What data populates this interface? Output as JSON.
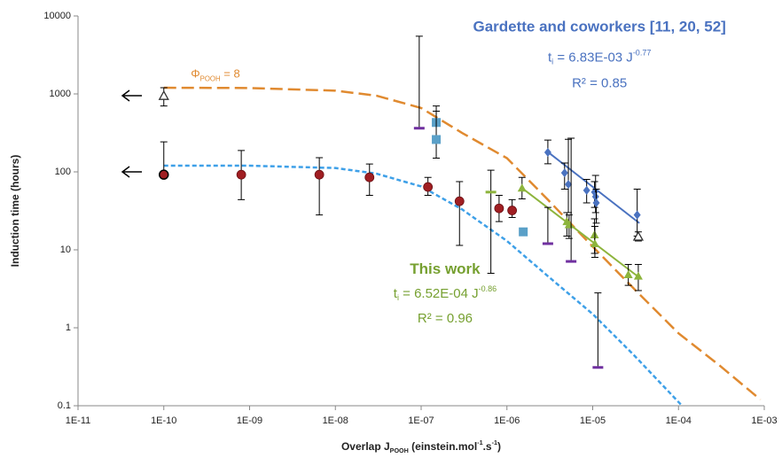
{
  "chart_data": {
    "type": "scatter",
    "log_x": true,
    "log_y": true,
    "xlim": [
      1e-11,
      0.001
    ],
    "ylim": [
      0.1,
      10000
    ],
    "xticks": [
      {
        "value": 1e-11,
        "label": "1E-11"
      },
      {
        "value": 1e-10,
        "label": "1E-10"
      },
      {
        "value": 1e-09,
        "label": "1E-09"
      },
      {
        "value": 1e-08,
        "label": "1E-08"
      },
      {
        "value": 1e-07,
        "label": "1E-07"
      },
      {
        "value": 1e-06,
        "label": "1E-06"
      },
      {
        "value": 1e-05,
        "label": "1E-05"
      },
      {
        "value": 0.0001,
        "label": "1E-04"
      },
      {
        "value": 0.001,
        "label": "1E-03"
      }
    ],
    "yticks": [
      0.1,
      1,
      10,
      100,
      1000,
      10000
    ],
    "y_label": "Induction time (hours)",
    "x_label": [
      {
        "text": "Overlap J"
      },
      {
        "text": "POOH",
        "shift": "sub"
      },
      {
        "text": " (einstein.mol"
      },
      {
        "text": "-1",
        "shift": "sup"
      },
      {
        "text": ".s"
      },
      {
        "text": "-1",
        "shift": "sup"
      },
      {
        "text": ")"
      }
    ],
    "annotations": [
      {
        "color": "#4a72c0",
        "bold": true,
        "size": 17,
        "at": [
          1.2e-05,
          7000
        ],
        "parts": [
          {
            "text": "Gardette and coworkers [11, 20, 52]"
          }
        ]
      },
      {
        "color": "#4a72c0",
        "size": 15,
        "at": [
          1.2e-05,
          2900
        ],
        "parts": [
          {
            "text": "t"
          },
          {
            "text": "i",
            "shift": "sub"
          },
          {
            "text": " = 6.83E-03 J"
          },
          {
            "text": "-0.77",
            "shift": "sup"
          }
        ]
      },
      {
        "color": "#4a72c0",
        "size": 15,
        "at": [
          1.2e-05,
          1350
        ],
        "parts": [
          {
            "text": "R² = 0.85"
          }
        ]
      },
      {
        "color": "#76a030",
        "bold": true,
        "size": 17,
        "at": [
          1.9e-07,
          5.5
        ],
        "parts": [
          {
            "text": "This work"
          }
        ]
      },
      {
        "color": "#76a030",
        "size": 15,
        "at": [
          1.9e-07,
          2.7
        ],
        "parts": [
          {
            "text": "t"
          },
          {
            "text": "i",
            "shift": "sub"
          },
          {
            "text": " = 6.52E-04 J"
          },
          {
            "text": "-0.86",
            "shift": "sup"
          }
        ]
      },
      {
        "color": "#76a030",
        "size": 15,
        "at": [
          1.9e-07,
          1.3
        ],
        "parts": [
          {
            "text": "R² = 0.96"
          }
        ]
      },
      {
        "color": "#e08a30",
        "size": 13,
        "at": [
          4e-10,
          1750
        ],
        "parts": [
          {
            "text": "Φ"
          },
          {
            "text": "POOH",
            "shift": "sub"
          },
          {
            "text": " = 8"
          }
        ]
      }
    ],
    "series": [
      {
        "style": "dashed",
        "color": "#e08a30",
        "x": [
          1e-10,
          1e-09,
          1e-08,
          3e-08,
          1e-07,
          3e-07,
          1e-06,
          3e-06,
          1e-05,
          3e-05,
          0.0001,
          0.0003,
          0.0009
        ],
        "values": [
          1200,
          1190,
          1100,
          950,
          660,
          316,
          150,
          44,
          11,
          3.2,
          0.85,
          0.33,
          0.12
        ]
      },
      {
        "style": "dotted",
        "color": "#3ea0e8",
        "x": [
          1e-10,
          1e-09,
          1e-08,
          3e-08,
          1e-07,
          3e-07,
          1e-06,
          3e-06,
          1e-05,
          3e-05,
          0.00011
        ],
        "values": [
          120,
          120,
          112,
          95,
          65,
          33,
          13,
          4.6,
          1.5,
          0.45,
          0.1
        ]
      },
      {
        "style": "solid",
        "color": "#4a72c0",
        "x": [
          3e-06,
          3.5e-05
        ],
        "values": [
          180,
          22
        ]
      },
      {
        "style": "solid",
        "color": "#8db43c",
        "x": [
          1.5e-06,
          3.5e-05
        ],
        "values": [
          62,
          4.4
        ]
      },
      {
        "marker": "circle",
        "color": "#a01e22",
        "x": [
          1e-10,
          8e-10,
          6.5e-09,
          2.5e-08,
          1.2e-07,
          2.8e-07,
          8.1e-07,
          1.15e-06
        ],
        "values": [
          92,
          92,
          92,
          85,
          64,
          42,
          34,
          32
        ],
        "err_high": [
          243,
          188,
          152,
          126,
          85,
          75,
          50,
          44
        ],
        "err_low": [
          92,
          44,
          28,
          50,
          50,
          11.4,
          23,
          26
        ]
      },
      {
        "marker": "diamond",
        "color": "#4a72c0",
        "x": [
          3e-06,
          4.7e-06,
          5.2e-06,
          8.5e-06,
          1.05e-05,
          1.08e-05,
          1.1e-05,
          3.3e-05
        ],
        "values": [
          178,
          97,
          69,
          58,
          55,
          48,
          40,
          28
        ],
        "err_high": [
          256,
          130,
          262,
          80,
          75,
          90,
          60,
          60
        ],
        "err_low": [
          127,
          60,
          30,
          40,
          35,
          30,
          22,
          15
        ]
      },
      {
        "marker": "triangle",
        "color": "#8db43c",
        "x": [
          1.5e-06,
          5e-06,
          5.3e-06,
          1.05e-05,
          1.06e-05,
          2.6e-05,
          3.4e-05
        ],
        "values": [
          62,
          23,
          21,
          15.6,
          12,
          4.8,
          4.6
        ],
        "err_high": [
          85,
          30,
          28,
          25,
          20,
          6.5,
          6.5
        ],
        "err_low": [
          45,
          15,
          14,
          9,
          8,
          3.5,
          3
        ]
      },
      {
        "marker": "triangle-open",
        "color": "#8db43c",
        "x": [
          1e-10,
          3.4e-05
        ],
        "values": [
          944,
          14.8
        ],
        "err_high": [
          1200,
          17
        ],
        "err_low": [
          700,
          13
        ]
      },
      {
        "marker": "dash",
        "color": "#7030a0",
        "x": [
          9.5e-08,
          3e-06,
          5.6e-06,
          1.15e-05
        ],
        "values": [
          363,
          12,
          7.1,
          0.31
        ],
        "err_high": [
          5500,
          35,
          270,
          2.8
        ],
        "err_low": [
          363,
          12,
          7.1,
          0.31
        ]
      },
      {
        "marker": "square",
        "color": "#5aa0c8",
        "x": [
          1.5e-07,
          1.5e-07,
          1.55e-06
        ],
        "values": [
          430,
          260,
          17
        ],
        "err_high": [
          700,
          600,
          17
        ],
        "err_low": [
          430,
          150,
          17
        ]
      },
      {
        "marker": "dash",
        "color": "#8db43c",
        "x": [
          6.5e-07
        ],
        "values": [
          55
        ],
        "err_high": [
          105
        ],
        "err_low": [
          5
        ]
      }
    ]
  }
}
